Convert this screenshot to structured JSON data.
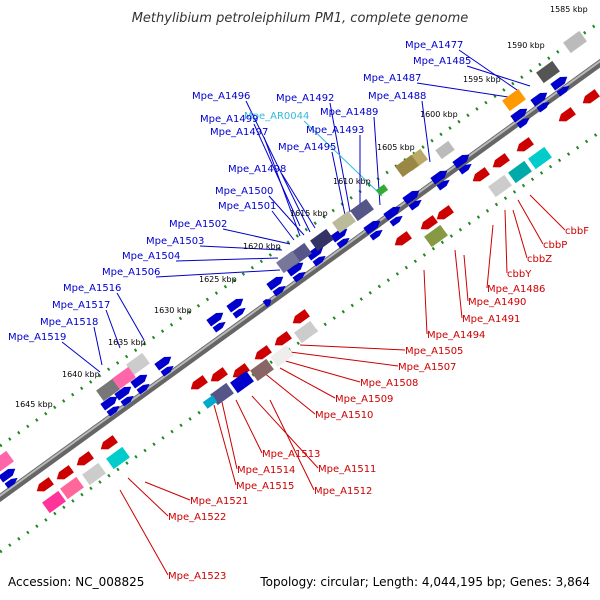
{
  "title": "Methylibium petroleiphilum PM1, complete genome",
  "footer": {
    "accession": "Accession: NC_008825",
    "topology": "Topology: circular; Length: 4,044,195 bp; Genes: 3,864"
  },
  "colors": {
    "top_strand": "#0000cc",
    "bottom_strand": "#cc0000",
    "rna": "#33bbdd",
    "dots": "#228822",
    "backbone": "#808080"
  },
  "kbp_labels": [
    "1585 kbp",
    "1590 kbp",
    "1595 kbp",
    "1600 kbp",
    "1605 kbp",
    "1610 kbp",
    "1615 kbp",
    "1620 kbp",
    "1625 kbp",
    "1630 kbp",
    "1635 kbp",
    "1640 kbp",
    "1645 kbp"
  ],
  "top_genes": [
    "Mpe_A1477",
    "Mpe_A1485",
    "Mpe_A1487",
    "Mpe_A1488",
    "Mpe_A1492",
    "Mpe_AR0044",
    "Mpe_A1489",
    "Mpe_A1496",
    "Mpe_A1499",
    "Mpe_A1497",
    "Mpe_A1493",
    "Mpe_A1495",
    "Mpe_A1498",
    "Mpe_A1500",
    "Mpe_A1501",
    "Mpe_A1502",
    "Mpe_A1503",
    "Mpe_A1504",
    "Mpe_A1506",
    "Mpe_A1516",
    "Mpe_A1517",
    "Mpe_A1518",
    "Mpe_A1519"
  ],
  "bottom_genes": [
    "cbbF",
    "cbbP",
    "cbbZ",
    "cbbY",
    "Mpe_A1486",
    "Mpe_A1490",
    "Mpe_A1491",
    "Mpe_A1494",
    "Mpe_A1505",
    "Mpe_A1507",
    "Mpe_A1508",
    "Mpe_A1509",
    "Mpe_A1510",
    "Mpe_A1513",
    "Mpe_A1511",
    "Mpe_A1514",
    "Mpe_A1515",
    "Mpe_A1512",
    "Mpe_A1521",
    "Mpe_A1522",
    "Mpe_A1523"
  ]
}
